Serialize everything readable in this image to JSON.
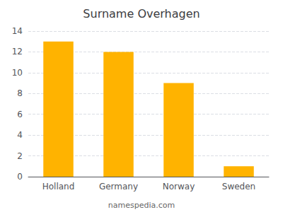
{
  "chart_data": {
    "type": "bar",
    "title": "Surname Overhagen",
    "categories": [
      "Holland",
      "Germany",
      "Norway",
      "Sweden"
    ],
    "values": [
      13,
      12,
      9,
      1
    ],
    "color": "#FFB300",
    "ylim": [
      0,
      14
    ],
    "yticks": [
      0,
      2,
      4,
      6,
      8,
      10,
      12,
      14
    ],
    "grid": true,
    "annotations": [
      "namespedia.com"
    ]
  }
}
